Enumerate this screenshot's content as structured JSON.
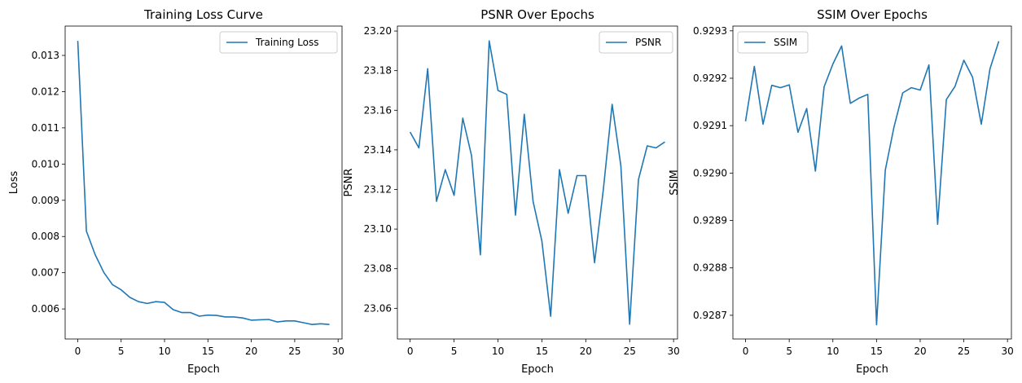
{
  "chart_data": [
    {
      "type": "line",
      "title": "Training Loss Curve",
      "xlabel": "Epoch",
      "ylabel": "Loss",
      "xlim": [
        -1.45,
        30.45
      ],
      "ylim": [
        0.00517,
        0.01381
      ],
      "xticks": [
        0,
        5,
        10,
        15,
        20,
        25,
        30
      ],
      "yticks": [
        "0.006",
        "0.007",
        "0.008",
        "0.009",
        "0.010",
        "0.011",
        "0.012",
        "0.013"
      ],
      "legend": "top-right",
      "grid": false,
      "color": "#1f77b4",
      "series": [
        {
          "name": "Training Loss",
          "x": [
            0,
            1,
            2,
            3,
            4,
            5,
            6,
            7,
            8,
            9,
            10,
            11,
            12,
            13,
            14,
            15,
            16,
            17,
            18,
            19,
            20,
            21,
            22,
            23,
            24,
            25,
            26,
            27,
            28,
            29
          ],
          "values": [
            0.0134,
            0.00815,
            0.0075,
            0.00701,
            0.00667,
            0.00653,
            0.00632,
            0.0062,
            0.00615,
            0.0062,
            0.00618,
            0.00598,
            0.0059,
            0.0059,
            0.0058,
            0.00583,
            0.00582,
            0.00578,
            0.00578,
            0.00575,
            0.00569,
            0.0057,
            0.00571,
            0.00564,
            0.00567,
            0.00567,
            0.00562,
            0.00557,
            0.00559,
            0.00557
          ]
        }
      ]
    },
    {
      "type": "line",
      "title": "PSNR Over Epochs",
      "xlabel": "Epoch",
      "ylabel": "PSNR",
      "xlim": [
        -1.45,
        30.45
      ],
      "ylim": [
        23.0445,
        23.2025
      ],
      "xticks": [
        0,
        5,
        10,
        15,
        20,
        25,
        30
      ],
      "yticks": [
        "23.06",
        "23.08",
        "23.10",
        "23.12",
        "23.14",
        "23.16",
        "23.18",
        "23.20"
      ],
      "legend": "top-right",
      "grid": false,
      "color": "#1f77b4",
      "series": [
        {
          "name": "PSNR",
          "x": [
            0,
            1,
            2,
            3,
            4,
            5,
            6,
            7,
            8,
            9,
            10,
            11,
            12,
            13,
            14,
            15,
            16,
            17,
            18,
            19,
            20,
            21,
            22,
            23,
            24,
            25,
            26,
            27,
            28,
            29
          ],
          "values": [
            23.149,
            23.141,
            23.181,
            23.114,
            23.13,
            23.117,
            23.156,
            23.137,
            23.087,
            23.195,
            23.17,
            23.168,
            23.107,
            23.158,
            23.114,
            23.094,
            23.056,
            23.13,
            23.108,
            23.127,
            23.127,
            23.083,
            23.12,
            23.163,
            23.132,
            23.052,
            23.125,
            23.142,
            23.141,
            23.144
          ]
        }
      ]
    },
    {
      "type": "line",
      "title": "SSIM Over Epochs",
      "xlabel": "Epoch",
      "ylabel": "SSIM",
      "xlim": [
        -1.45,
        30.45
      ],
      "ylim": [
        0.92865,
        0.92931
      ],
      "xticks": [
        0,
        5,
        10,
        15,
        20,
        25,
        30
      ],
      "yticks": [
        "0.9287",
        "0.9288",
        "0.9289",
        "0.9290",
        "0.9291",
        "0.9292",
        "0.9293"
      ],
      "legend": "top-left",
      "grid": false,
      "color": "#1f77b4",
      "series": [
        {
          "name": "SSIM",
          "x": [
            0,
            1,
            2,
            3,
            4,
            5,
            6,
            7,
            8,
            9,
            10,
            11,
            12,
            13,
            14,
            15,
            16,
            17,
            18,
            19,
            20,
            21,
            22,
            23,
            24,
            25,
            26,
            27,
            28,
            29
          ],
          "values": [
            0.929109,
            0.929225,
            0.929103,
            0.929185,
            0.92918,
            0.929186,
            0.929086,
            0.929136,
            0.929004,
            0.929182,
            0.92923,
            0.929268,
            0.929147,
            0.929158,
            0.929166,
            0.92868,
            0.929006,
            0.929097,
            0.929169,
            0.92918,
            0.929175,
            0.929228,
            0.928892,
            0.929155,
            0.929183,
            0.929238,
            0.929202,
            0.929103,
            0.92922,
            0.929278
          ]
        }
      ]
    }
  ]
}
